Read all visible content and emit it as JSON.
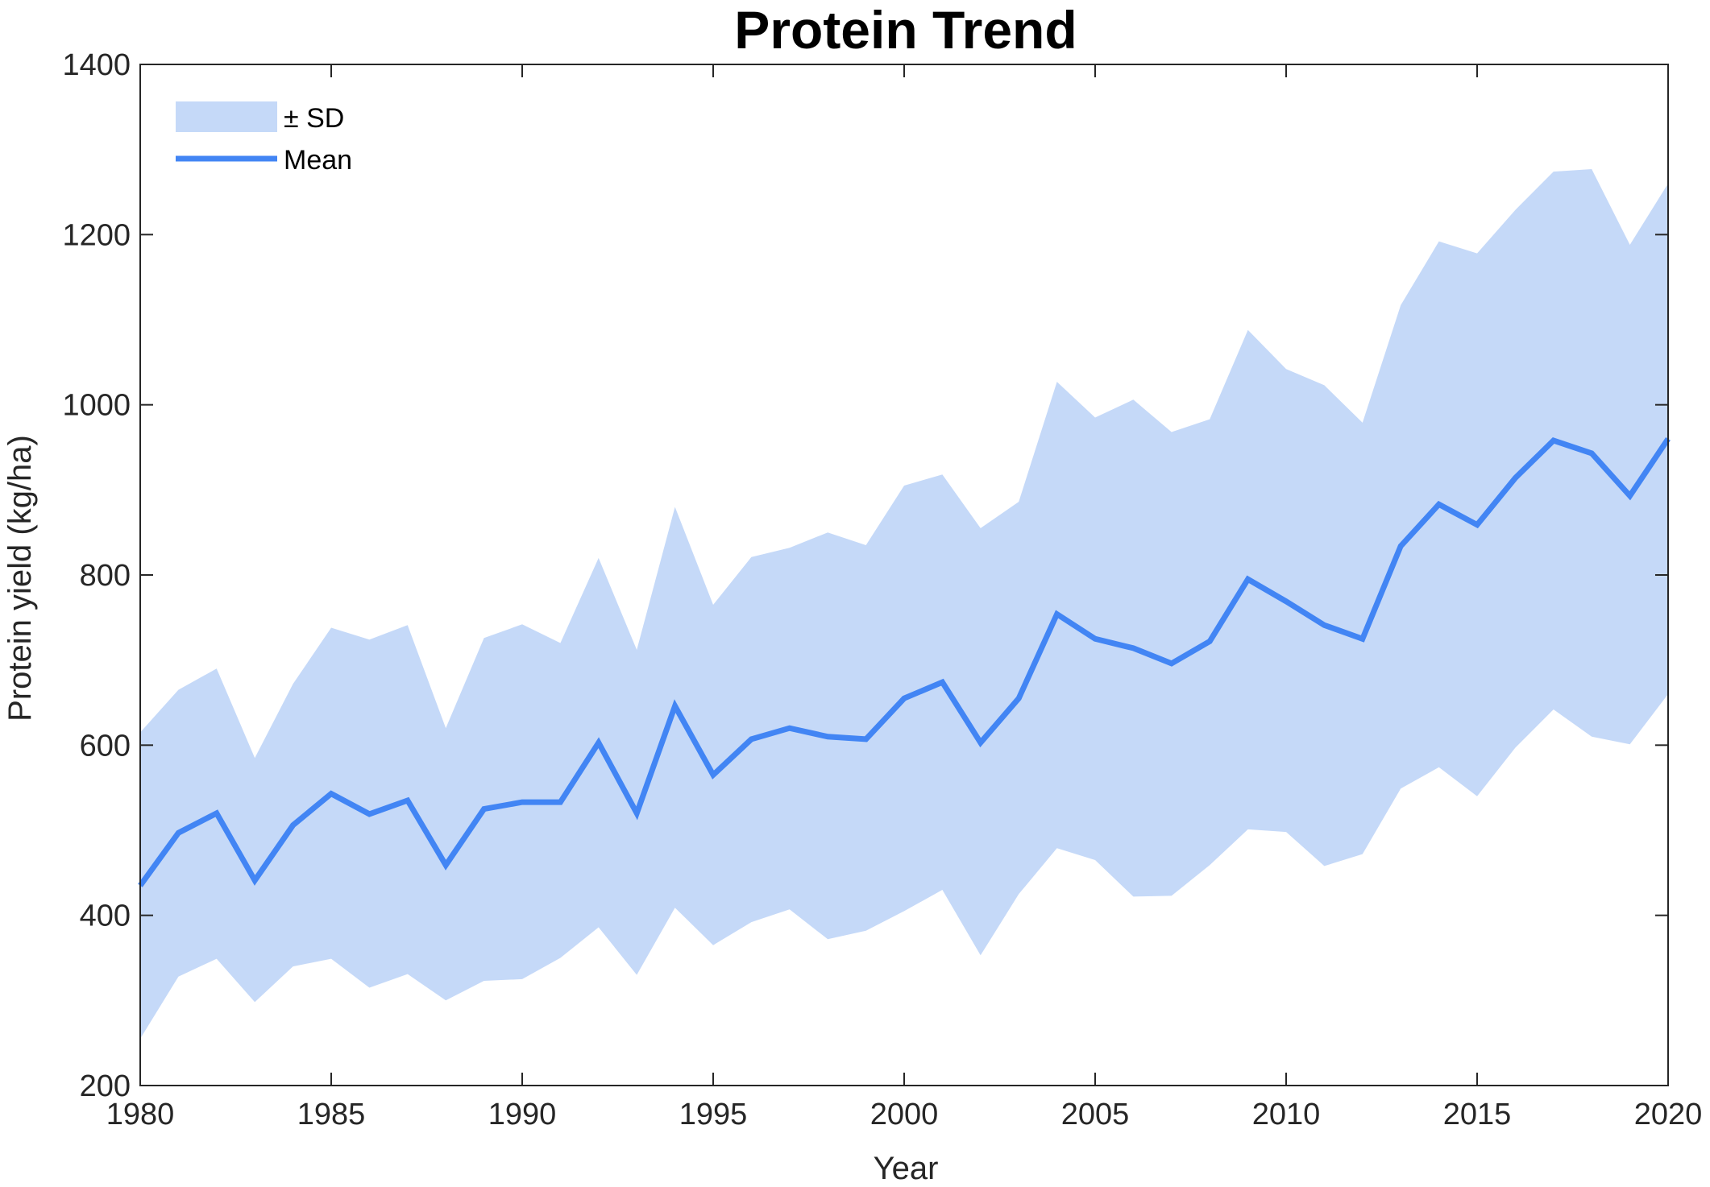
{
  "chart_data": {
    "type": "area",
    "title": "Protein Trend",
    "xlabel": "Year",
    "ylabel": "Protein yield (kg/ha)",
    "xlim": [
      1980,
      2020
    ],
    "ylim": [
      200,
      1400
    ],
    "xticks": [
      1980,
      1985,
      1990,
      1995,
      2000,
      2005,
      2010,
      2015,
      2020
    ],
    "yticks": [
      200,
      400,
      600,
      800,
      1000,
      1200,
      1400
    ],
    "grid": false,
    "legend_position": "top-left",
    "x": [
      1980,
      1981,
      1982,
      1983,
      1984,
      1985,
      1986,
      1987,
      1988,
      1989,
      1990,
      1991,
      1992,
      1993,
      1994,
      1995,
      1996,
      1997,
      1998,
      1999,
      2000,
      2001,
      2002,
      2003,
      2004,
      2005,
      2006,
      2007,
      2008,
      2009,
      2010,
      2011,
      2012,
      2013,
      2014,
      2015,
      2016,
      2017,
      2018,
      2019,
      2020
    ],
    "series": [
      {
        "name": "± SD",
        "kind": "band",
        "color": "#c5d9f8",
        "upper": [
          615,
          665,
          690,
          585,
          672,
          738,
          724,
          741,
          620,
          726,
          742,
          720,
          820,
          712,
          880,
          765,
          821,
          832,
          850,
          835,
          905,
          918,
          855,
          886,
          1027,
          985,
          1006,
          968,
          983,
          1088,
          1042,
          1023,
          979,
          1117,
          1192,
          1178,
          1229,
          1274,
          1277,
          1188,
          1260
        ],
        "lower": [
          255,
          328,
          349,
          298,
          340,
          349,
          315,
          331,
          300,
          323,
          325,
          350,
          386,
          330,
          409,
          365,
          392,
          407,
          372,
          382,
          405,
          430,
          353,
          425,
          479,
          465,
          422,
          423,
          459,
          501,
          498,
          458,
          472,
          549,
          574,
          540,
          597,
          642,
          610,
          601,
          660
        ]
      },
      {
        "name": "Mean",
        "kind": "line",
        "color": "#4285f4",
        "values": [
          435,
          497,
          520,
          441,
          506,
          543,
          519,
          535,
          459,
          525,
          533,
          533,
          603,
          520,
          646,
          565,
          607,
          620,
          610,
          607,
          655,
          674,
          603,
          655,
          754,
          725,
          714,
          696,
          722,
          795,
          769,
          741,
          725,
          834,
          883,
          859,
          914,
          958,
          943,
          893,
          960
        ]
      }
    ]
  }
}
